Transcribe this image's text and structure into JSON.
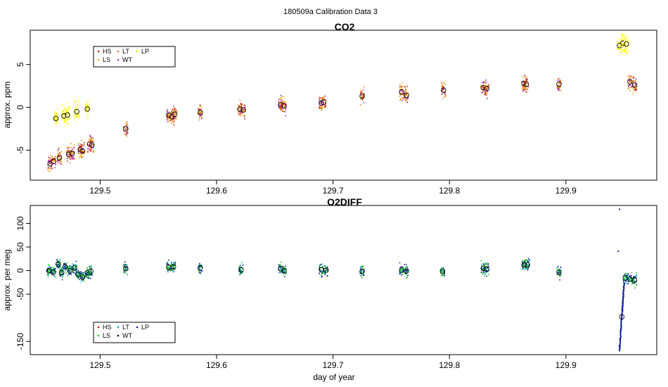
{
  "figure": {
    "title": "180509a   Calibration Data 3",
    "xlabel": "day of year"
  },
  "legend_entries": [
    {
      "label": "HS",
      "color": "#d40000"
    },
    {
      "label": "LT",
      "color": "#00b4b4"
    },
    {
      "label": "LP",
      "color": "#0a1a99"
    },
    {
      "label": "LS",
      "color": "#1acc1a"
    },
    {
      "label": "WT",
      "color": "#000000"
    }
  ],
  "chart_data": [
    {
      "type": "scatter",
      "title": "CO2",
      "ylabel": "approx. ppm",
      "xlim": [
        129.44,
        129.978
      ],
      "ylim": [
        -8.5,
        9.0
      ],
      "xticks": [
        129.5,
        129.6,
        129.7,
        129.8,
        129.9
      ],
      "xtick_labels": [
        "129.5",
        "129.6",
        "129.7",
        "129.8",
        "129.9"
      ],
      "yticks": [
        -5,
        0,
        5
      ],
      "ytick_labels": [
        "-5",
        "0",
        "5"
      ],
      "legend": {
        "placement": "top-left",
        "entries": [
          {
            "label": "HS",
            "color": "#d40000"
          },
          {
            "label": "LT",
            "color": "#ff6a00"
          },
          {
            "label": "LP",
            "color": "#eaea00"
          },
          {
            "label": "LS",
            "color": "#ffa000"
          },
          {
            "label": "WT",
            "color": "#9b30ff"
          }
        ]
      },
      "point_colors": [
        "#d40000",
        "#ff6a00",
        "#ffa000",
        "#9b30ff",
        "#c8a000"
      ],
      "highlight_color": "#ffff00",
      "clusters": [
        {
          "x": 129.457,
          "y": -6.6
        },
        {
          "x": 129.46,
          "y": -6.3
        },
        {
          "x": 129.465,
          "y": -5.9
        },
        {
          "x": 129.473,
          "y": -5.5
        },
        {
          "x": 129.476,
          "y": -5.4
        },
        {
          "x": 129.483,
          "y": -4.9
        },
        {
          "x": 129.485,
          "y": -5.1
        },
        {
          "x": 129.491,
          "y": -4.3
        },
        {
          "x": 129.493,
          "y": -4.4
        },
        {
          "x": 129.522,
          "y": -2.5
        },
        {
          "x": 129.559,
          "y": -0.9
        },
        {
          "x": 129.562,
          "y": -1.1
        },
        {
          "x": 129.564,
          "y": -0.8
        },
        {
          "x": 129.586,
          "y": -0.6
        },
        {
          "x": 129.62,
          "y": -0.2
        },
        {
          "x": 129.623,
          "y": -0.3
        },
        {
          "x": 129.655,
          "y": 0.3
        },
        {
          "x": 129.658,
          "y": 0.2
        },
        {
          "x": 129.69,
          "y": 0.5
        },
        {
          "x": 129.692,
          "y": 0.6
        },
        {
          "x": 129.725,
          "y": 1.3
        },
        {
          "x": 129.759,
          "y": 1.8
        },
        {
          "x": 129.763,
          "y": 1.4
        },
        {
          "x": 129.795,
          "y": 2.0
        },
        {
          "x": 129.829,
          "y": 2.3
        },
        {
          "x": 129.832,
          "y": 2.2
        },
        {
          "x": 129.864,
          "y": 2.8
        },
        {
          "x": 129.866,
          "y": 2.7
        },
        {
          "x": 129.894,
          "y": 2.7
        },
        {
          "x": 129.955,
          "y": 3.0
        },
        {
          "x": 129.959,
          "y": 2.6
        }
      ],
      "highlight_clusters": [
        {
          "x": 129.462,
          "y": -1.3
        },
        {
          "x": 129.469,
          "y": -1.0
        },
        {
          "x": 129.472,
          "y": -0.9
        },
        {
          "x": 129.48,
          "y": -0.5
        },
        {
          "x": 129.489,
          "y": -0.2
        },
        {
          "x": 129.946,
          "y": 7.2
        },
        {
          "x": 129.949,
          "y": 7.5
        },
        {
          "x": 129.952,
          "y": 7.4
        }
      ]
    },
    {
      "type": "scatter",
      "title": "O2DIFF",
      "ylabel": "approx. per meg",
      "xlim": [
        129.44,
        129.978
      ],
      "ylim": [
        -178,
        138
      ],
      "xticks": [
        129.5,
        129.6,
        129.7,
        129.8,
        129.9
      ],
      "xtick_labels": [
        "129.5",
        "129.6",
        "129.7",
        "129.8",
        "129.9"
      ],
      "yticks": [
        -150,
        -50,
        0,
        50,
        100
      ],
      "ytick_labels": [
        "-150",
        "-50",
        "0",
        "50",
        "100"
      ],
      "legend": {
        "placement": "bottom-left",
        "entries": [
          {
            "label": "HS",
            "color": "#d40000"
          },
          {
            "label": "LT",
            "color": "#00b4b4"
          },
          {
            "label": "LP",
            "color": "#0a1a99"
          },
          {
            "label": "LS",
            "color": "#1acc1a"
          },
          {
            "label": "WT",
            "color": "#000000"
          }
        ]
      },
      "point_colors": [
        "#1acc1a",
        "#00b4b4",
        "#0a1a99",
        "#0a1a99",
        "#1acc1a"
      ],
      "highlight_color": "#0a1a99",
      "clusters": [
        {
          "x": 129.456,
          "y": 0
        },
        {
          "x": 129.46,
          "y": -3
        },
        {
          "x": 129.464,
          "y": 14
        },
        {
          "x": 129.467,
          "y": -4
        },
        {
          "x": 129.47,
          "y": 8
        },
        {
          "x": 129.474,
          "y": 0
        },
        {
          "x": 129.478,
          "y": 5
        },
        {
          "x": 129.481,
          "y": -8
        },
        {
          "x": 129.485,
          "y": -14
        },
        {
          "x": 129.489,
          "y": -5
        },
        {
          "x": 129.492,
          "y": -2
        },
        {
          "x": 129.522,
          "y": 4
        },
        {
          "x": 129.559,
          "y": 7
        },
        {
          "x": 129.563,
          "y": 8
        },
        {
          "x": 129.586,
          "y": 6
        },
        {
          "x": 129.621,
          "y": 1
        },
        {
          "x": 129.655,
          "y": 4
        },
        {
          "x": 129.658,
          "y": 0
        },
        {
          "x": 129.69,
          "y": 2
        },
        {
          "x": 129.694,
          "y": 1
        },
        {
          "x": 129.725,
          "y": -2
        },
        {
          "x": 129.759,
          "y": 1
        },
        {
          "x": 129.763,
          "y": -1
        },
        {
          "x": 129.794,
          "y": -2
        },
        {
          "x": 129.829,
          "y": 5
        },
        {
          "x": 129.832,
          "y": 3
        },
        {
          "x": 129.864,
          "y": 12
        },
        {
          "x": 129.867,
          "y": 12
        },
        {
          "x": 129.894,
          "y": -3
        },
        {
          "x": 129.951,
          "y": -16
        },
        {
          "x": 129.955,
          "y": -18
        },
        {
          "x": 129.959,
          "y": -20
        }
      ],
      "streak": {
        "x_start": 129.946,
        "x_end": 129.95,
        "y_start": -170,
        "y_end": -25,
        "circle_y": -98
      },
      "outliers": [
        {
          "x": 129.946,
          "y": 130
        },
        {
          "x": 129.945,
          "y": 41
        }
      ]
    }
  ]
}
